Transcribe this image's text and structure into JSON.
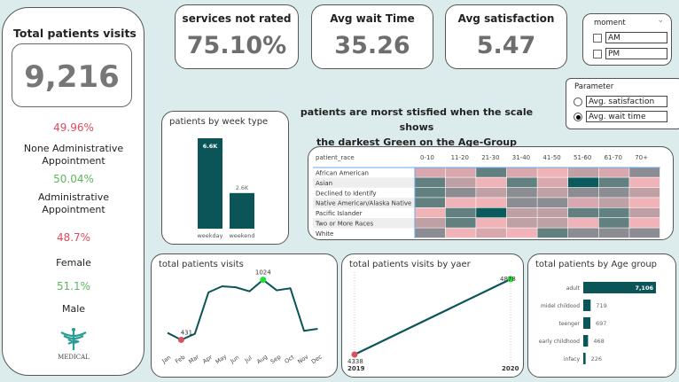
{
  "left_panel": {
    "title": "Total patients visits",
    "total": "9,216",
    "stats": [
      {
        "value": "49.96%",
        "label": "None Administrative Appointment",
        "color": "#e04b5a"
      },
      {
        "value": "50.04%",
        "label": "Administrative Appointment",
        "color": "#5cb85c"
      },
      {
        "value": "48.7%",
        "label": "Female",
        "color": "#e04b5a"
      },
      {
        "value": "51.1%",
        "label": "Male",
        "color": "#5cb85c"
      }
    ],
    "logo": {
      "text": "MEDICAL",
      "icon": "caduceus-icon"
    }
  },
  "kpis": [
    {
      "title": "services not rated",
      "value": "75.10%"
    },
    {
      "title": "Avg wait Time",
      "value": "35.26"
    },
    {
      "title": "Avg satisfaction",
      "value": "5.47"
    }
  ],
  "moment_slicer": {
    "title": "moment",
    "options": [
      {
        "label": "AM",
        "checked": false
      },
      {
        "label": "PM",
        "checked": false
      }
    ]
  },
  "parameter": {
    "title": "Parameter",
    "options": [
      {
        "label": "Avg. satisfaction",
        "selected": false
      },
      {
        "label": "Avg. wait time",
        "selected": true
      }
    ]
  },
  "headline": [
    "patients are morst stisfied when the scale shows",
    "the darkest Green on the Age-Group"
  ],
  "chart_data": [
    {
      "type": "bar",
      "title": "patients by week type",
      "categories": [
        "weekday",
        "weekend"
      ],
      "values": [
        6600,
        2600
      ],
      "labels": [
        "6.6K",
        "2.6K"
      ],
      "color": "#0b5458"
    },
    {
      "type": "heatmap",
      "row_header": "patient_race",
      "columns": [
        "0-10",
        "11-20",
        "21-30",
        "31-40",
        "41-50",
        "51-60",
        "61-70",
        "70+"
      ],
      "rows": [
        "African American",
        "Asian",
        "Declined to Identify",
        "Native American/Alaska Native",
        "Pacific Islander",
        "Two or More Races",
        "White"
      ],
      "levels": [
        [
          1,
          1,
          4,
          1,
          0,
          2,
          1,
          3
        ],
        [
          4,
          2,
          0,
          4,
          1,
          5,
          4,
          0
        ],
        [
          4,
          3,
          2,
          3,
          2,
          3,
          3,
          2
        ],
        [
          4,
          0,
          0,
          3,
          3,
          1,
          2,
          0
        ],
        [
          0,
          4,
          5,
          2,
          2,
          4,
          4,
          2
        ],
        [
          2,
          4,
          0,
          2,
          2,
          0,
          4,
          0
        ],
        [
          3,
          0,
          1,
          0,
          4,
          3,
          3,
          3
        ]
      ],
      "scale_colors": [
        "#f0b3b8",
        "#d9a8ae",
        "#bfa0a5",
        "#8c8d92",
        "#62807f",
        "#0b5b5e"
      ]
    },
    {
      "type": "line",
      "title": "total patients visits",
      "categories": [
        "Jan",
        "Feb",
        "Mar",
        "Apr",
        "May",
        "Jun",
        "Jul",
        "Aug",
        "Sep",
        "Oct",
        "Nov",
        "Dec"
      ],
      "values": [
        500,
        431,
        490,
        900,
        960,
        950,
        910,
        1024,
        920,
        940,
        520,
        540
      ],
      "min_label": "431",
      "max_label": "1024",
      "color": "#0b5458"
    },
    {
      "type": "line",
      "title": "total patients visits by yaer",
      "categories": [
        "2019",
        "2020"
      ],
      "values": [
        4338,
        4878
      ],
      "labels": [
        "4338",
        "4878"
      ],
      "color": "#0b5458"
    },
    {
      "type": "bar",
      "orientation": "horizontal",
      "title": "total patients by Age group",
      "categories": [
        "adult",
        "midel childood",
        "teenger",
        "early childhood",
        "infacy"
      ],
      "values": [
        7106,
        719,
        697,
        468,
        226
      ],
      "labels": [
        "7,106",
        "719",
        "697",
        "468",
        "226"
      ],
      "color": "#0b5458"
    }
  ]
}
